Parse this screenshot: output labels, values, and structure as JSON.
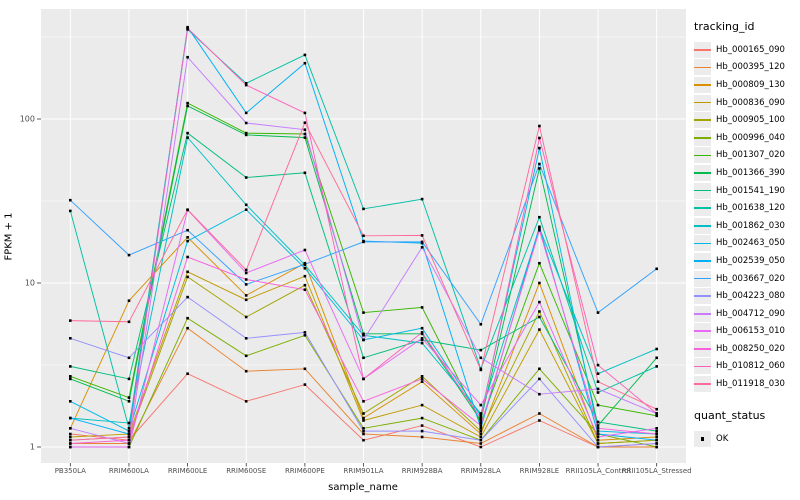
{
  "chart_data": {
    "type": "line",
    "title": "",
    "xlabel": "sample_name",
    "ylabel": "FPKM + 1",
    "y_scale": "log10",
    "y_tick_labels": [
      "100",
      "10",
      "1"
    ],
    "y_tick_values": [
      100,
      10,
      1
    ],
    "y_minor_gridlines": [
      3.1623,
      31.623,
      316.23
    ],
    "ylim": [
      0.85,
      470
    ],
    "grid": "white major+minor on gray panel",
    "legend_position": "right",
    "point_shape": "small black square",
    "categories": [
      "PB350LA",
      "RRIM600LA",
      "RRIM600LE",
      "RRIM600SE",
      "RRIM600PE",
      "RRIM901LA",
      "RRIM928BA",
      "RRIM928LA",
      "RRIM928LE",
      "RRII105LA_Control",
      "RRII105LA_Stressed"
    ],
    "series": [
      {
        "name": "Hb_000165_090",
        "color": "#F8766D",
        "values": [
          1.2,
          1.1,
          2.8,
          1.9,
          2.4,
          1.1,
          1.35,
          1.0,
          1.45,
          1.0,
          1.05
        ]
      },
      {
        "name": "Hb_000395_120",
        "color": "#EA8331",
        "values": [
          1.05,
          1.05,
          5.3,
          2.9,
          3.0,
          1.2,
          1.15,
          1.05,
          1.6,
          1.0,
          1.0
        ]
      },
      {
        "name": "Hb_000809_130",
        "color": "#D89000",
        "values": [
          1.3,
          7.8,
          19,
          8.4,
          13.2,
          1.5,
          2.5,
          1.2,
          10,
          1.1,
          1.15
        ]
      },
      {
        "name": "Hb_000836_090",
        "color": "#C09B00",
        "values": [
          1.15,
          1.2,
          11.7,
          7.9,
          11,
          1.45,
          1.8,
          1.15,
          5.2,
          1.05,
          1.1
        ]
      },
      {
        "name": "Hb_000905_100",
        "color": "#A3A500",
        "values": [
          1.1,
          1.15,
          10.9,
          6.2,
          9.7,
          1.6,
          2.7,
          1.25,
          6.7,
          1.05,
          1.1
        ]
      },
      {
        "name": "Hb_000996_040",
        "color": "#7CAE00",
        "values": [
          1.0,
          1.0,
          6.1,
          3.6,
          4.8,
          1.3,
          1.5,
          1.1,
          3.0,
          1.2,
          1.0
        ]
      },
      {
        "name": "Hb_001307_020",
        "color": "#39B600",
        "values": [
          2.7,
          2.0,
          125,
          82,
          81,
          6.6,
          7.1,
          1.4,
          13.2,
          1.8,
          1.55
        ]
      },
      {
        "name": "Hb_001366_390",
        "color": "#00BB4E",
        "values": [
          2.6,
          1.9,
          120,
          80,
          77,
          4.9,
          4.9,
          1.45,
          50,
          1.35,
          3.5
        ]
      },
      {
        "name": "Hb_001541_190",
        "color": "#00BF7D",
        "values": [
          3.1,
          2.6,
          82,
          44,
          47,
          3.5,
          4.5,
          3.9,
          6.2,
          1.42,
          1.25
        ]
      },
      {
        "name": "Hb_001638_120",
        "color": "#00C1A3",
        "values": [
          27.5,
          1.3,
          352,
          165,
          246,
          28.3,
          32.5,
          3.0,
          25.2,
          2.15,
          3.1
        ]
      },
      {
        "name": "Hb_001862_030",
        "color": "#00BFC4",
        "values": [
          1.5,
          1.4,
          77,
          30,
          12.9,
          4.8,
          4.3,
          1.6,
          21.6,
          2.8,
          3.96
        ]
      },
      {
        "name": "Hb_002463_050",
        "color": "#00BAE0",
        "values": [
          1.9,
          1.25,
          18,
          28,
          12.3,
          4.5,
          5.3,
          1.55,
          66.5,
          1.25,
          1.2
        ]
      },
      {
        "name": "Hb_002539_050",
        "color": "#00B0F6",
        "values": [
          1.5,
          1.2,
          363,
          109,
          219,
          18,
          17.5,
          1.3,
          22,
          1.2,
          1.1
        ]
      },
      {
        "name": "Hb_003667_020",
        "color": "#35A2FF",
        "values": [
          32,
          14.8,
          21,
          9.8,
          13,
          17.8,
          17.8,
          5.6,
          53.2,
          6.6,
          12.2
        ]
      },
      {
        "name": "Hb_004223_080",
        "color": "#9590FF",
        "values": [
          4.6,
          3.5,
          8.2,
          4.6,
          5.0,
          1.25,
          1.25,
          1.1,
          2.6,
          1.0,
          1.05
        ]
      },
      {
        "name": "Hb_004712_090",
        "color": "#C77CFF",
        "values": [
          1.3,
          1.05,
          238,
          94.6,
          86,
          4.5,
          16.5,
          3.5,
          2.1,
          2.26,
          1.6
        ]
      },
      {
        "name": "Hb_006153_010",
        "color": "#E76BF3",
        "values": [
          1.0,
          1.0,
          27.9,
          11.5,
          15.9,
          2.6,
          4.6,
          1.8,
          7.65,
          1.15,
          1.3
        ]
      },
      {
        "name": "Hb_008250_020",
        "color": "#FA62DB",
        "values": [
          1.05,
          1.1,
          14.4,
          10.5,
          9.1,
          1.9,
          2.6,
          1.35,
          21,
          1.3,
          1.2
        ]
      },
      {
        "name": "Hb_010812_060",
        "color": "#FF62BC",
        "values": [
          1.1,
          1.15,
          358,
          161,
          109,
          2.6,
          5.0,
          1.5,
          76.6,
          3.16,
          1.6
        ]
      },
      {
        "name": "Hb_011918_030",
        "color": "#FF6A98",
        "values": [
          5.9,
          5.8,
          28,
          12,
          95,
          19.4,
          19.5,
          2.95,
          90.6,
          2.5,
          1.7
        ]
      }
    ]
  },
  "legend": {
    "tracking_title": "tracking_id",
    "quant_title": "quant_status",
    "quant_ok_label": "OK"
  },
  "style": {
    "panel_bg": "#EBEBEB",
    "gridline": "#FFFFFF",
    "tick_text": "#4D4D4D",
    "tick_mark": "#333333",
    "point_color": "#000000"
  }
}
